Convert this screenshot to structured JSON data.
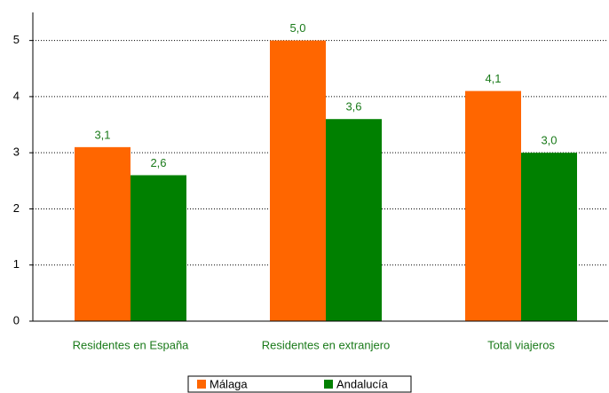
{
  "chart_data": {
    "type": "bar",
    "categories": [
      "Residentes en España",
      "Residentes en extranjero",
      "Total viajeros"
    ],
    "series": [
      {
        "name": "Málaga",
        "color": "#ff6600",
        "values": [
          3.1,
          5.0,
          4.1
        ],
        "value_labels": [
          "3,1",
          "5,0",
          "4,1"
        ]
      },
      {
        "name": "Andalucía",
        "color": "#008000",
        "values": [
          2.6,
          3.6,
          3.0
        ],
        "value_labels": [
          "2,6",
          "3,6",
          "3,0"
        ]
      }
    ],
    "ylim": [
      0,
      5.5
    ],
    "yticks": [
      0,
      1,
      2,
      3,
      4,
      5
    ],
    "grid": true,
    "legend": "bottom"
  }
}
